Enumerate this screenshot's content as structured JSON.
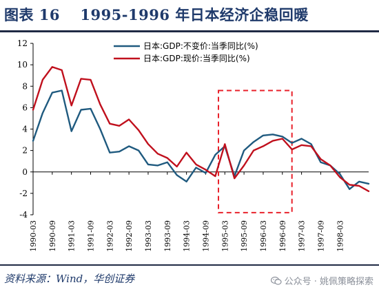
{
  "header": {
    "title": "图表 16　 1995-1996 年日本经济企稳回暖"
  },
  "footer": {
    "source": "资料来源：Wind，华创证券",
    "watermark": "公众号 · 姚佩策略探索",
    "watermark_icon": "wechat-icon"
  },
  "colors": {
    "series_blue": "#1f5a7f",
    "series_red": "#c0101d",
    "highlight_box": "#e8202a",
    "axis": "#000000"
  },
  "chart_data": {
    "type": "line",
    "title": "",
    "xlabel": "",
    "ylabel": "",
    "ylim": [
      -4,
      12
    ],
    "yticks": [
      -4,
      -2,
      0,
      2,
      4,
      6,
      8,
      10,
      12
    ],
    "xlim": [
      "1990-03",
      "1998-12"
    ],
    "xticks": [
      "1990-03",
      "1990-09",
      "1991-03",
      "1991-09",
      "1992-03",
      "1992-09",
      "1993-03",
      "1993-09",
      "1994-03",
      "1994-09",
      "1995-03",
      "1995-09",
      "1996-03",
      "1996-09",
      "1997-03",
      "1997-09",
      "1998-03"
    ],
    "grid": false,
    "legend_position": "top",
    "highlight": {
      "x_start": "1995-01",
      "x_end": "1996-12",
      "y_bottom": -3.8,
      "y_top": 7.6,
      "style": "dashed"
    },
    "series": [
      {
        "name": "日本:GDP:不变价:当季同比(%)",
        "color": "#1f5a7f",
        "points": [
          [
            "1990-03",
            2.9
          ],
          [
            "1990-06",
            5.5
          ],
          [
            "1990-09",
            7.4
          ],
          [
            "1990-12",
            7.6
          ],
          [
            "1991-03",
            3.8
          ],
          [
            "1991-06",
            5.8
          ],
          [
            "1991-09",
            5.9
          ],
          [
            "1991-12",
            4.0
          ],
          [
            "1992-03",
            1.8
          ],
          [
            "1992-06",
            1.9
          ],
          [
            "1992-09",
            2.4
          ],
          [
            "1992-12",
            2.0
          ],
          [
            "1993-03",
            0.7
          ],
          [
            "1993-06",
            0.6
          ],
          [
            "1993-09",
            0.9
          ],
          [
            "1993-12",
            -0.3
          ],
          [
            "1994-03",
            -0.9
          ],
          [
            "1994-06",
            0.4
          ],
          [
            "1994-09",
            -0.1
          ],
          [
            "1994-12",
            1.6
          ],
          [
            "1995-03",
            2.4
          ],
          [
            "1995-06",
            -0.4
          ],
          [
            "1995-09",
            2.0
          ],
          [
            "1995-12",
            2.8
          ],
          [
            "1996-03",
            3.4
          ],
          [
            "1996-06",
            3.5
          ],
          [
            "1996-09",
            3.3
          ],
          [
            "1996-12",
            2.7
          ],
          [
            "1997-03",
            3.1
          ],
          [
            "1997-06",
            2.6
          ],
          [
            "1997-09",
            0.9
          ],
          [
            "1997-12",
            0.6
          ],
          [
            "1998-03",
            -0.2
          ],
          [
            "1998-06",
            -1.6
          ],
          [
            "1998-09",
            -0.9
          ],
          [
            "1998-12",
            -1.1
          ]
        ]
      },
      {
        "name": "日本:GDP:现价:当季同比(%)",
        "color": "#c0101d",
        "points": [
          [
            "1990-03",
            5.8
          ],
          [
            "1990-06",
            8.6
          ],
          [
            "1990-09",
            9.8
          ],
          [
            "1990-12",
            9.5
          ],
          [
            "1991-03",
            6.2
          ],
          [
            "1991-06",
            8.7
          ],
          [
            "1991-09",
            8.6
          ],
          [
            "1991-12",
            6.3
          ],
          [
            "1992-03",
            4.5
          ],
          [
            "1992-06",
            4.3
          ],
          [
            "1992-09",
            4.9
          ],
          [
            "1992-12",
            3.9
          ],
          [
            "1993-03",
            2.6
          ],
          [
            "1993-06",
            1.7
          ],
          [
            "1993-09",
            1.3
          ],
          [
            "1993-12",
            0.5
          ],
          [
            "1994-03",
            1.8
          ],
          [
            "1994-06",
            0.7
          ],
          [
            "1994-09",
            0.2
          ],
          [
            "1994-12",
            -0.4
          ],
          [
            "1995-03",
            2.6
          ],
          [
            "1995-06",
            -0.6
          ],
          [
            "1995-09",
            0.6
          ],
          [
            "1995-12",
            2.0
          ],
          [
            "1996-03",
            2.4
          ],
          [
            "1996-06",
            2.9
          ],
          [
            "1996-09",
            3.1
          ],
          [
            "1996-12",
            2.1
          ],
          [
            "1997-03",
            2.5
          ],
          [
            "1997-06",
            2.4
          ],
          [
            "1997-09",
            1.2
          ],
          [
            "1997-12",
            0.6
          ],
          [
            "1998-03",
            -0.5
          ],
          [
            "1998-06",
            -1.2
          ],
          [
            "1998-09",
            -1.3
          ],
          [
            "1998-12",
            -1.8
          ]
        ]
      }
    ]
  }
}
